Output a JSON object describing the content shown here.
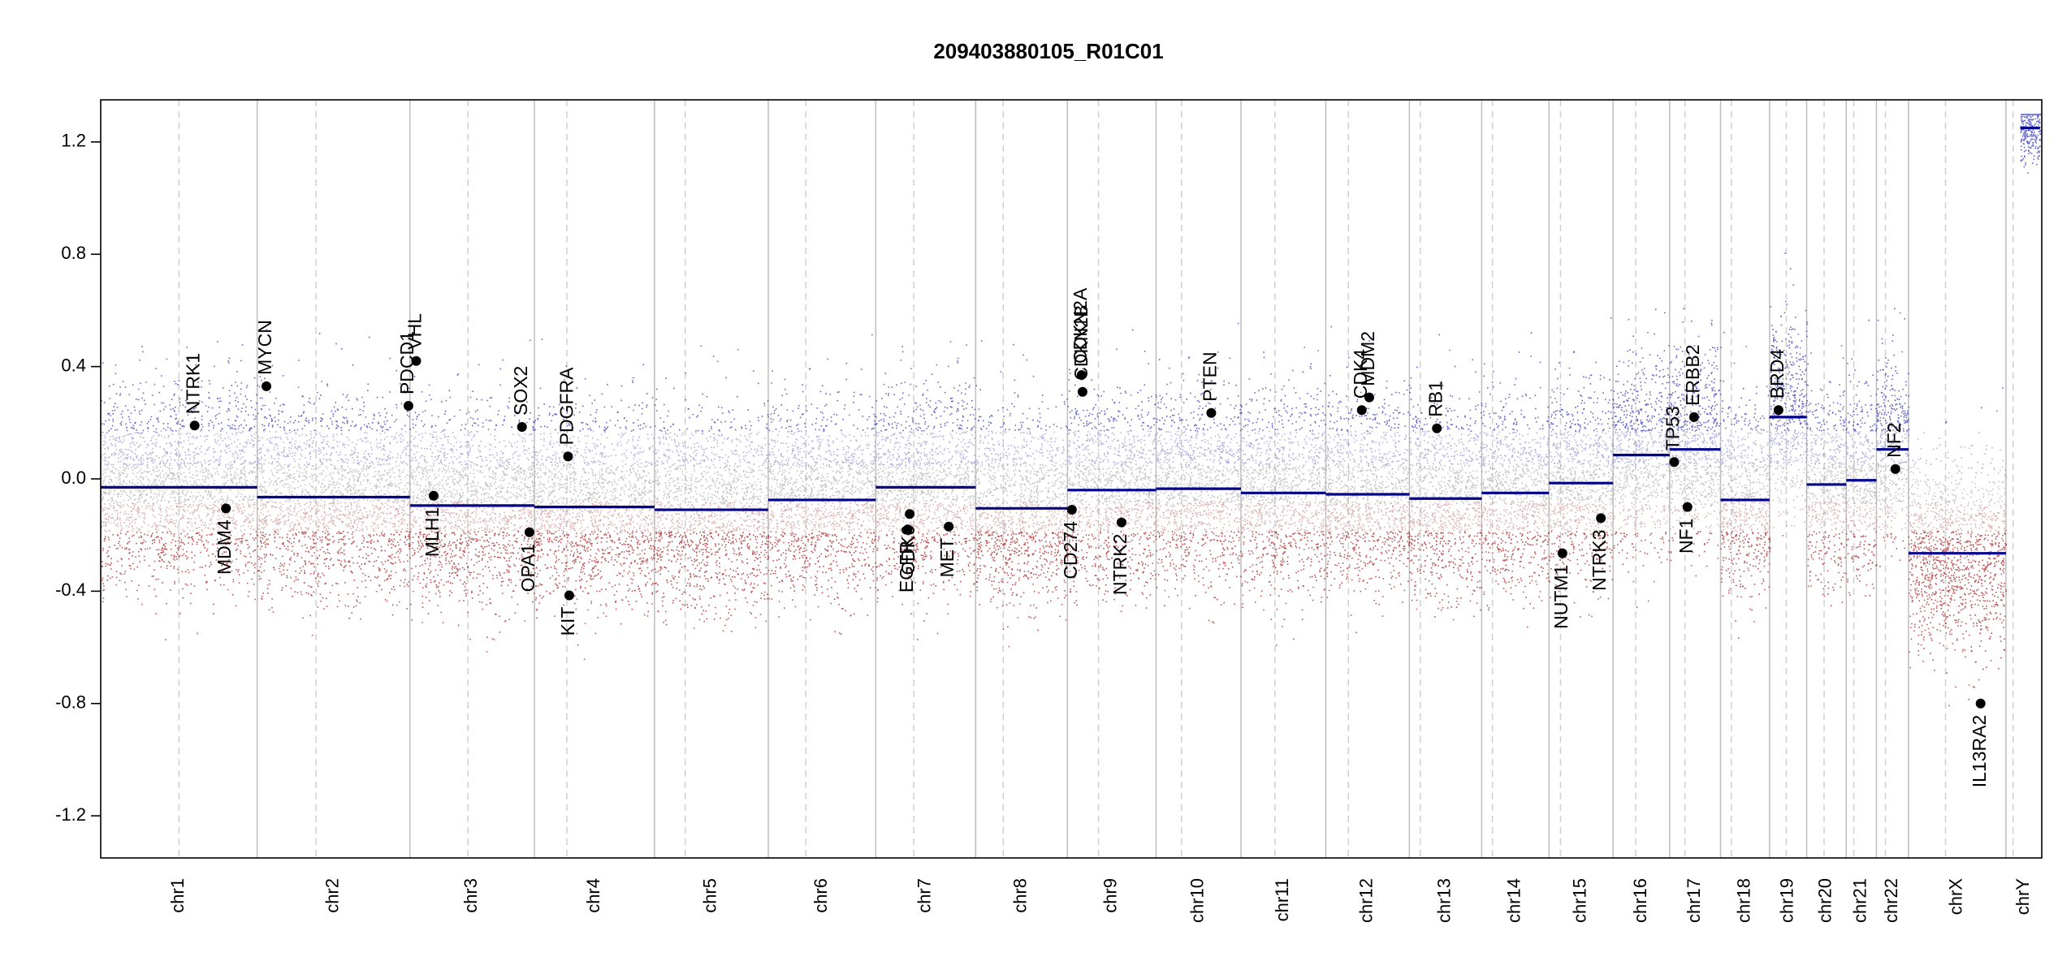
{
  "chart_data": {
    "type": "scatter",
    "title": "209403880105_R01C01",
    "xlabel": "",
    "ylabel": "",
    "ylim": [
      -1.35,
      1.35
    ],
    "yticks": [
      -1.2,
      -0.8,
      -0.4,
      0.0,
      0.4,
      0.8,
      1.2
    ],
    "ytick_labels": [
      "-1.2",
      "-0.8",
      "-0.4",
      "0.0",
      "0.4",
      "0.8",
      "1.2"
    ],
    "colors": {
      "gain": "#3535b5",
      "loss": "#a52020",
      "neutral": "#b0b0b0",
      "segment": "#00008b",
      "gene_point": "#000000",
      "chrom_boundary": "#bdbdbd",
      "centromere": "#cfcfcf"
    },
    "chromosomes": [
      {
        "name": "chr1",
        "length": 249,
        "centromere": 0.5,
        "segments": [
          {
            "start": 0,
            "end": 1,
            "value": -0.03
          }
        ]
      },
      {
        "name": "chr2",
        "length": 243,
        "centromere": 0.385,
        "segments": [
          {
            "start": 0,
            "end": 1,
            "value": -0.065
          }
        ]
      },
      {
        "name": "chr3",
        "length": 198,
        "centromere": 0.465,
        "segments": [
          {
            "start": 0,
            "end": 1,
            "value": -0.095
          }
        ]
      },
      {
        "name": "chr4",
        "length": 191,
        "centromere": 0.27,
        "segments": [
          {
            "start": 0,
            "end": 1,
            "value": -0.1
          }
        ]
      },
      {
        "name": "chr5",
        "length": 181,
        "centromere": 0.27,
        "segments": [
          {
            "start": 0,
            "end": 1,
            "value": -0.11
          }
        ]
      },
      {
        "name": "chr6",
        "length": 171,
        "centromere": 0.35,
        "segments": [
          {
            "start": 0,
            "end": 1,
            "value": -0.075
          }
        ]
      },
      {
        "name": "chr7",
        "length": 159,
        "centromere": 0.38,
        "segments": [
          {
            "start": 0,
            "end": 1,
            "value": -0.03
          }
        ]
      },
      {
        "name": "chr8",
        "length": 146,
        "centromere": 0.3,
        "segments": [
          {
            "start": 0,
            "end": 1,
            "value": -0.105
          }
        ]
      },
      {
        "name": "chr9",
        "length": 141,
        "centromere": 0.35,
        "segments": [
          {
            "start": 0,
            "end": 1,
            "value": -0.04
          }
        ]
      },
      {
        "name": "chr10",
        "length": 135,
        "centromere": 0.3,
        "segments": [
          {
            "start": 0,
            "end": 1,
            "value": -0.035
          }
        ]
      },
      {
        "name": "chr11",
        "length": 135,
        "centromere": 0.4,
        "segments": [
          {
            "start": 0,
            "end": 1,
            "value": -0.05
          }
        ]
      },
      {
        "name": "chr12",
        "length": 133,
        "centromere": 0.27,
        "segments": [
          {
            "start": 0,
            "end": 1,
            "value": -0.055
          }
        ]
      },
      {
        "name": "chr13",
        "length": 115,
        "centromere": 0.15,
        "segments": [
          {
            "start": 0,
            "end": 1,
            "value": -0.07
          }
        ]
      },
      {
        "name": "chr14",
        "length": 107,
        "centromere": 0.16,
        "segments": [
          {
            "start": 0,
            "end": 1,
            "value": -0.05
          }
        ]
      },
      {
        "name": "chr15",
        "length": 102,
        "centromere": 0.18,
        "segments": [
          {
            "start": 0,
            "end": 1,
            "value": -0.015
          }
        ]
      },
      {
        "name": "chr16",
        "length": 90,
        "centromere": 0.4,
        "segments": [
          {
            "start": 0,
            "end": 1,
            "value": 0.085
          }
        ]
      },
      {
        "name": "chr17",
        "length": 81,
        "centromere": 0.3,
        "segments": [
          {
            "start": 0,
            "end": 1,
            "value": 0.105
          }
        ]
      },
      {
        "name": "chr18",
        "length": 78,
        "centromere": 0.22,
        "segments": [
          {
            "start": 0,
            "end": 1,
            "value": -0.075
          }
        ]
      },
      {
        "name": "chr19",
        "length": 59,
        "centromere": 0.45,
        "segments": [
          {
            "start": 0,
            "end": 1,
            "value": 0.22
          }
        ]
      },
      {
        "name": "chr20",
        "length": 63,
        "centromere": 0.44,
        "segments": [
          {
            "start": 0,
            "end": 1,
            "value": -0.02
          }
        ]
      },
      {
        "name": "chr21",
        "length": 48,
        "centromere": 0.25,
        "segments": [
          {
            "start": 0,
            "end": 1,
            "value": -0.005
          }
        ]
      },
      {
        "name": "chr22",
        "length": 51,
        "centromere": 0.28,
        "segments": [
          {
            "start": 0,
            "end": 1,
            "value": 0.105
          }
        ]
      },
      {
        "name": "chrX",
        "length": 155,
        "centromere": 0.38,
        "segments": [
          {
            "start": 0,
            "end": 1,
            "value": -0.265
          }
        ]
      },
      {
        "name": "chrY",
        "length": 57,
        "centromere": 0.2,
        "segments": [
          {
            "start": 0.4,
            "end": 0.95,
            "value": 1.25
          }
        ]
      }
    ],
    "genes": [
      {
        "name": "NTRK1",
        "chrom": "chr1",
        "pos": 0.6,
        "value": 0.19,
        "label_side": "above"
      },
      {
        "name": "MDM4",
        "chrom": "chr1",
        "pos": 0.8,
        "value": -0.105,
        "label_side": "below"
      },
      {
        "name": "MYCN",
        "chrom": "chr2",
        "pos": 0.06,
        "value": 0.33,
        "label_side": "above"
      },
      {
        "name": "PDCD1",
        "chrom": "chr2",
        "pos": 0.99,
        "value": 0.26,
        "label_side": "above"
      },
      {
        "name": "VHL",
        "chrom": "chr3",
        "pos": 0.05,
        "value": 0.42,
        "label_side": "above"
      },
      {
        "name": "MLH1",
        "chrom": "chr3",
        "pos": 0.19,
        "value": -0.06,
        "label_side": "below"
      },
      {
        "name": "SOX2",
        "chrom": "chr3",
        "pos": 0.9,
        "value": 0.185,
        "label_side": "above"
      },
      {
        "name": "OPA1",
        "chrom": "chr3",
        "pos": 0.96,
        "value": -0.19,
        "label_side": "below"
      },
      {
        "name": "PDGFRA",
        "chrom": "chr4",
        "pos": 0.28,
        "value": 0.08,
        "label_side": "above"
      },
      {
        "name": "KIT",
        "chrom": "chr4",
        "pos": 0.29,
        "value": -0.415,
        "label_side": "below"
      },
      {
        "name": "EGFR",
        "chrom": "chr7",
        "pos": 0.32,
        "value": -0.18,
        "label_side": "below"
      },
      {
        "name": "CDK6",
        "chrom": "chr7",
        "pos": 0.34,
        "value": -0.125,
        "label_side": "below"
      },
      {
        "name": "MET",
        "chrom": "chr7",
        "pos": 0.73,
        "value": -0.17,
        "label_side": "below"
      },
      {
        "name": "CD274",
        "chrom": "chr9",
        "pos": 0.05,
        "value": -0.11,
        "label_side": "below"
      },
      {
        "name": "CDKN2A",
        "chrom": "chr9",
        "pos": 0.16,
        "value": 0.37,
        "label_side": "above"
      },
      {
        "name": "CDKN2B",
        "chrom": "chr9",
        "pos": 0.17,
        "value": 0.31,
        "label_side": "above"
      },
      {
        "name": "NTRK2",
        "chrom": "chr9",
        "pos": 0.61,
        "value": -0.155,
        "label_side": "below"
      },
      {
        "name": "PTEN",
        "chrom": "chr10",
        "pos": 0.65,
        "value": 0.235,
        "label_side": "above"
      },
      {
        "name": "CDK4",
        "chrom": "chr12",
        "pos": 0.43,
        "value": 0.245,
        "label_side": "above"
      },
      {
        "name": "MDM2",
        "chrom": "chr12",
        "pos": 0.52,
        "value": 0.29,
        "label_side": "above"
      },
      {
        "name": "RB1",
        "chrom": "chr13",
        "pos": 0.38,
        "value": 0.18,
        "label_side": "above"
      },
      {
        "name": "NUTM1",
        "chrom": "chr15",
        "pos": 0.21,
        "value": -0.265,
        "label_side": "below"
      },
      {
        "name": "NTRK3",
        "chrom": "chr15",
        "pos": 0.81,
        "value": -0.14,
        "label_side": "below"
      },
      {
        "name": "TP53",
        "chrom": "chr17",
        "pos": 0.09,
        "value": 0.06,
        "label_side": "above"
      },
      {
        "name": "NF1",
        "chrom": "chr17",
        "pos": 0.35,
        "value": -0.1,
        "label_side": "below"
      },
      {
        "name": "ERBB2",
        "chrom": "chr17",
        "pos": 0.48,
        "value": 0.22,
        "label_side": "above"
      },
      {
        "name": "BRD4",
        "chrom": "chr19",
        "pos": 0.24,
        "value": 0.245,
        "label_side": "above"
      },
      {
        "name": "NF2",
        "chrom": "chr22",
        "pos": 0.59,
        "value": 0.035,
        "label_side": "above"
      },
      {
        "name": "IL13RA2",
        "chrom": "chrX",
        "pos": 0.74,
        "value": -0.8,
        "label_side": "below"
      }
    ]
  }
}
